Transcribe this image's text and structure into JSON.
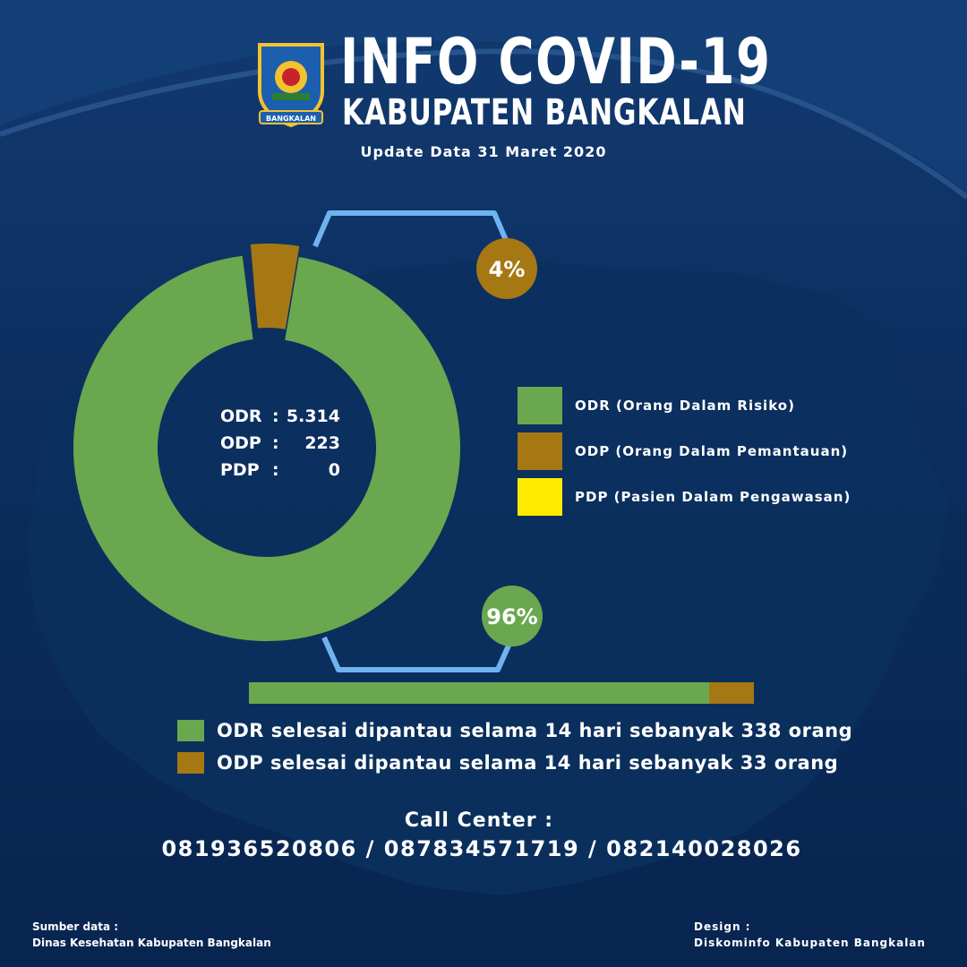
{
  "header": {
    "logo_text": "BANGKALAN",
    "title": "INFO COVID-19",
    "subtitle": "KABUPATEN BANGKALAN",
    "update": "Update Data 31 Maret 2020"
  },
  "colors": {
    "background": "#0a2a55",
    "odr": "#6aa84f",
    "odp": "#a57814",
    "pdp": "#ffea00",
    "bracket": "#6fb3ef"
  },
  "chart_data": {
    "type": "pie",
    "categories": [
      "ODR",
      "ODP",
      "PDP"
    ],
    "values": [
      5314,
      223,
      0
    ],
    "value_labels": [
      "5.314",
      "223",
      "0"
    ],
    "percent_labels": [
      "96%",
      "4%"
    ],
    "legend": [
      "ODR (Orang Dalam Risiko)",
      "ODP (Orang Dalam Pemantauan)",
      "PDP (Pasien Dalam Pengawasan)"
    ]
  },
  "completed": {
    "bar_values": [
      338,
      33
    ],
    "notes": [
      "ODR selesai dipantau selama 14 hari sebanyak 338 orang",
      "ODP selesai dipantau selama 14 hari sebanyak 33 orang"
    ]
  },
  "call_center": {
    "label": "Call Center :",
    "numbers": "081936520806 / 087834571719 / 082140028026"
  },
  "footer": {
    "source_label": "Sumber data :",
    "source_value": "Dinas Kesehatan Kabupaten Bangkalan",
    "design_label": "Design :",
    "design_value": "Diskominfo Kabupaten Bangkalan"
  }
}
